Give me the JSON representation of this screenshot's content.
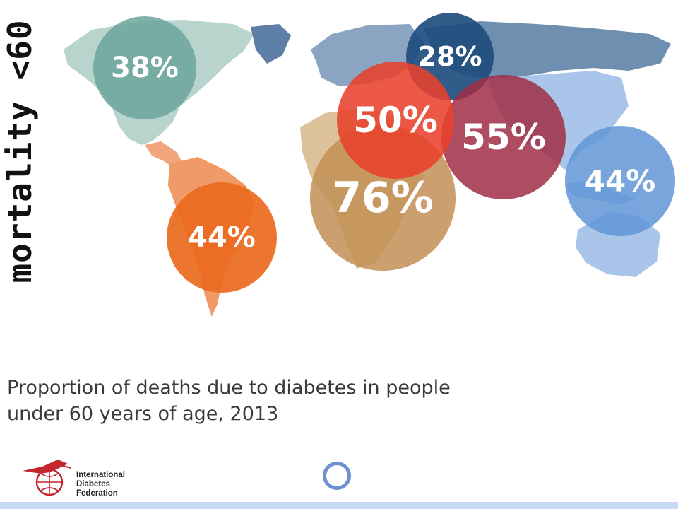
{
  "title": "mortality <60",
  "caption_line1": "Proportion of deaths due to diabetes in people",
  "caption_line2": "under 60 years of age, 2013",
  "logo": {
    "org_line1": "International",
    "org_line2": "Diabetes",
    "org_line3": "Federation"
  },
  "regions": [
    {
      "id": "north-america",
      "value": "38%",
      "color": "#6aa59b"
    },
    {
      "id": "south-america",
      "value": "44%",
      "color": "#ea6a1e"
    },
    {
      "id": "europe",
      "value": "28%",
      "color": "#1f4d7e"
    },
    {
      "id": "middle-east",
      "value": "50%",
      "color": "#e8412b"
    },
    {
      "id": "africa",
      "value": "76%",
      "color": "#c28f55"
    },
    {
      "id": "south-east-asia",
      "value": "55%",
      "color": "#a02e47"
    },
    {
      "id": "western-pacific",
      "value": "44%",
      "color": "#5f95d6"
    }
  ]
}
